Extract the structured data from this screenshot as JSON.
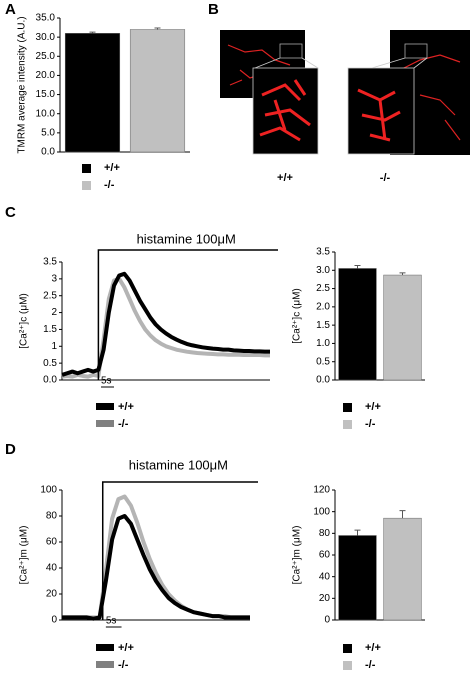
{
  "chart_data": [
    {
      "panel": "A",
      "type": "bar",
      "y_label": "TMRM average intensity (A.U.)",
      "ylim": [
        0,
        35
      ],
      "yticks": [
        {
          "value": 0,
          "label": "0.0"
        },
        {
          "value": 5,
          "label": "5.0"
        },
        {
          "value": 10,
          "label": "10.0"
        },
        {
          "value": 15,
          "label": "15.0"
        },
        {
          "value": 20,
          "label": "20.0"
        },
        {
          "value": 25,
          "label": "25.0"
        },
        {
          "value": 30,
          "label": "30.0"
        },
        {
          "value": 35,
          "label": "35.0"
        }
      ],
      "series": [
        {
          "name": "+/+",
          "color": "#000000",
          "values": [
            31
          ],
          "errors": [
            0.3
          ]
        },
        {
          "name": "-/-",
          "color": "#c0c0c0",
          "values": [
            32
          ],
          "errors": [
            0.4
          ]
        }
      ]
    },
    {
      "panel": "C",
      "type": "line",
      "y_label": "[Ca²⁺]c (μM)",
      "stimulus": {
        "label": "histamine 100μM",
        "start": 14
      },
      "scale_bar": {
        "label": "5s",
        "length": 5
      },
      "xlim": [
        0,
        80
      ],
      "ylim": [
        0,
        3.5
      ],
      "yticks": [
        {
          "value": 0,
          "label": "0.0"
        },
        0.5,
        1,
        1.5,
        2,
        2.5,
        3,
        3.5
      ],
      "x": [
        0,
        2,
        4,
        6,
        8,
        10,
        12,
        14,
        16,
        18,
        20,
        22,
        24,
        26,
        28,
        30,
        32,
        34,
        36,
        38,
        40,
        42,
        44,
        46,
        48,
        50,
        52,
        54,
        56,
        58,
        60,
        62,
        64,
        66,
        68,
        70,
        72,
        74,
        76,
        78,
        80
      ],
      "series": [
        {
          "name": "+/+",
          "color": "#000000",
          "values": [
            0.15,
            0.2,
            0.25,
            0.2,
            0.25,
            0.3,
            0.25,
            0.3,
            0.9,
            2.0,
            2.8,
            3.1,
            3.15,
            2.95,
            2.65,
            2.35,
            2.1,
            1.85,
            1.65,
            1.5,
            1.38,
            1.28,
            1.2,
            1.13,
            1.07,
            1.03,
            1.0,
            0.97,
            0.95,
            0.93,
            0.92,
            0.9,
            0.9,
            0.88,
            0.87,
            0.86,
            0.86,
            0.85,
            0.85,
            0.84,
            0.84
          ]
        },
        {
          "name": "-/-",
          "color": "#b4b4b4",
          "legend_color": "#808080",
          "values": [
            0.1,
            0.12,
            0.1,
            0.15,
            0.12,
            0.1,
            0.15,
            0.12,
            1.2,
            2.4,
            2.95,
            3.0,
            2.75,
            2.4,
            2.05,
            1.75,
            1.5,
            1.32,
            1.18,
            1.08,
            1.0,
            0.95,
            0.9,
            0.87,
            0.84,
            0.82,
            0.8,
            0.79,
            0.78,
            0.77,
            0.76,
            0.76,
            0.75,
            0.75,
            0.75,
            0.74,
            0.74,
            0.74,
            0.74,
            0.73,
            0.73
          ]
        }
      ]
    },
    {
      "panel": "",
      "type": "bar",
      "y_label": "[Ca²⁺]c (μM)",
      "ylim": [
        0,
        3.5
      ],
      "yticks": [
        {
          "value": 0,
          "label": "0.0"
        },
        0.5,
        {
          "value": 1,
          "label": "1.0"
        },
        1.5,
        {
          "value": 2,
          "label": "2.0"
        },
        2.5,
        {
          "value": 3,
          "label": "3.0"
        },
        3.5
      ],
      "series": [
        {
          "name": "+/+",
          "color": "#000000",
          "values": [
            3.05
          ],
          "errors": [
            0.08
          ]
        },
        {
          "name": "-/-",
          "color": "#c0c0c0",
          "values": [
            2.87
          ],
          "errors": [
            0.06
          ]
        }
      ]
    },
    {
      "panel": "D",
      "type": "line",
      "y_label": "[Ca²⁺]m (μM)",
      "stimulus": {
        "label": "histamine 100μM",
        "start": 13
      },
      "scale_bar": {
        "label": "5s",
        "length": 5
      },
      "xlim": [
        0,
        60
      ],
      "ylim": [
        0,
        100
      ],
      "yticks": [
        0,
        20,
        40,
        60,
        80,
        100
      ],
      "x": [
        0,
        2,
        4,
        6,
        8,
        10,
        12,
        14,
        16,
        18,
        20,
        22,
        24,
        26,
        28,
        30,
        32,
        34,
        36,
        38,
        40,
        42,
        44,
        46,
        48,
        50,
        52,
        54,
        56,
        58,
        60
      ],
      "series": [
        {
          "name": "+/+",
          "color": "#000000",
          "values": [
            2,
            2,
            2,
            2,
            2,
            1,
            2,
            30,
            62,
            78,
            80,
            74,
            62,
            50,
            39,
            30,
            23,
            17,
            13,
            10,
            8,
            6,
            5,
            4,
            3,
            3,
            2,
            2,
            2,
            2,
            2
          ]
        },
        {
          "name": "-/-",
          "color": "#b4b4b4",
          "legend_color": "#808080",
          "values": [
            2,
            2,
            2,
            2,
            2,
            2,
            2,
            38,
            78,
            93,
            95,
            88,
            75,
            60,
            47,
            36,
            27,
            20,
            15,
            11,
            8,
            6,
            5,
            4,
            3,
            3,
            3,
            2,
            2,
            2,
            2
          ]
        }
      ]
    },
    {
      "panel": "",
      "type": "bar",
      "y_label": "[Ca²⁺]m (μM)",
      "ylim": [
        0,
        120
      ],
      "yticks": [
        0,
        20,
        40,
        60,
        80,
        100,
        120
      ],
      "series": [
        {
          "name": "+/+",
          "color": "#000000",
          "values": [
            78
          ],
          "errors": [
            5
          ]
        },
        {
          "name": "-/-",
          "color": "#c0c0c0",
          "values": [
            94
          ],
          "errors": [
            7
          ]
        }
      ]
    }
  ],
  "image_panel": {
    "panel": "B",
    "captions": [
      "+/+",
      "-/-"
    ]
  }
}
